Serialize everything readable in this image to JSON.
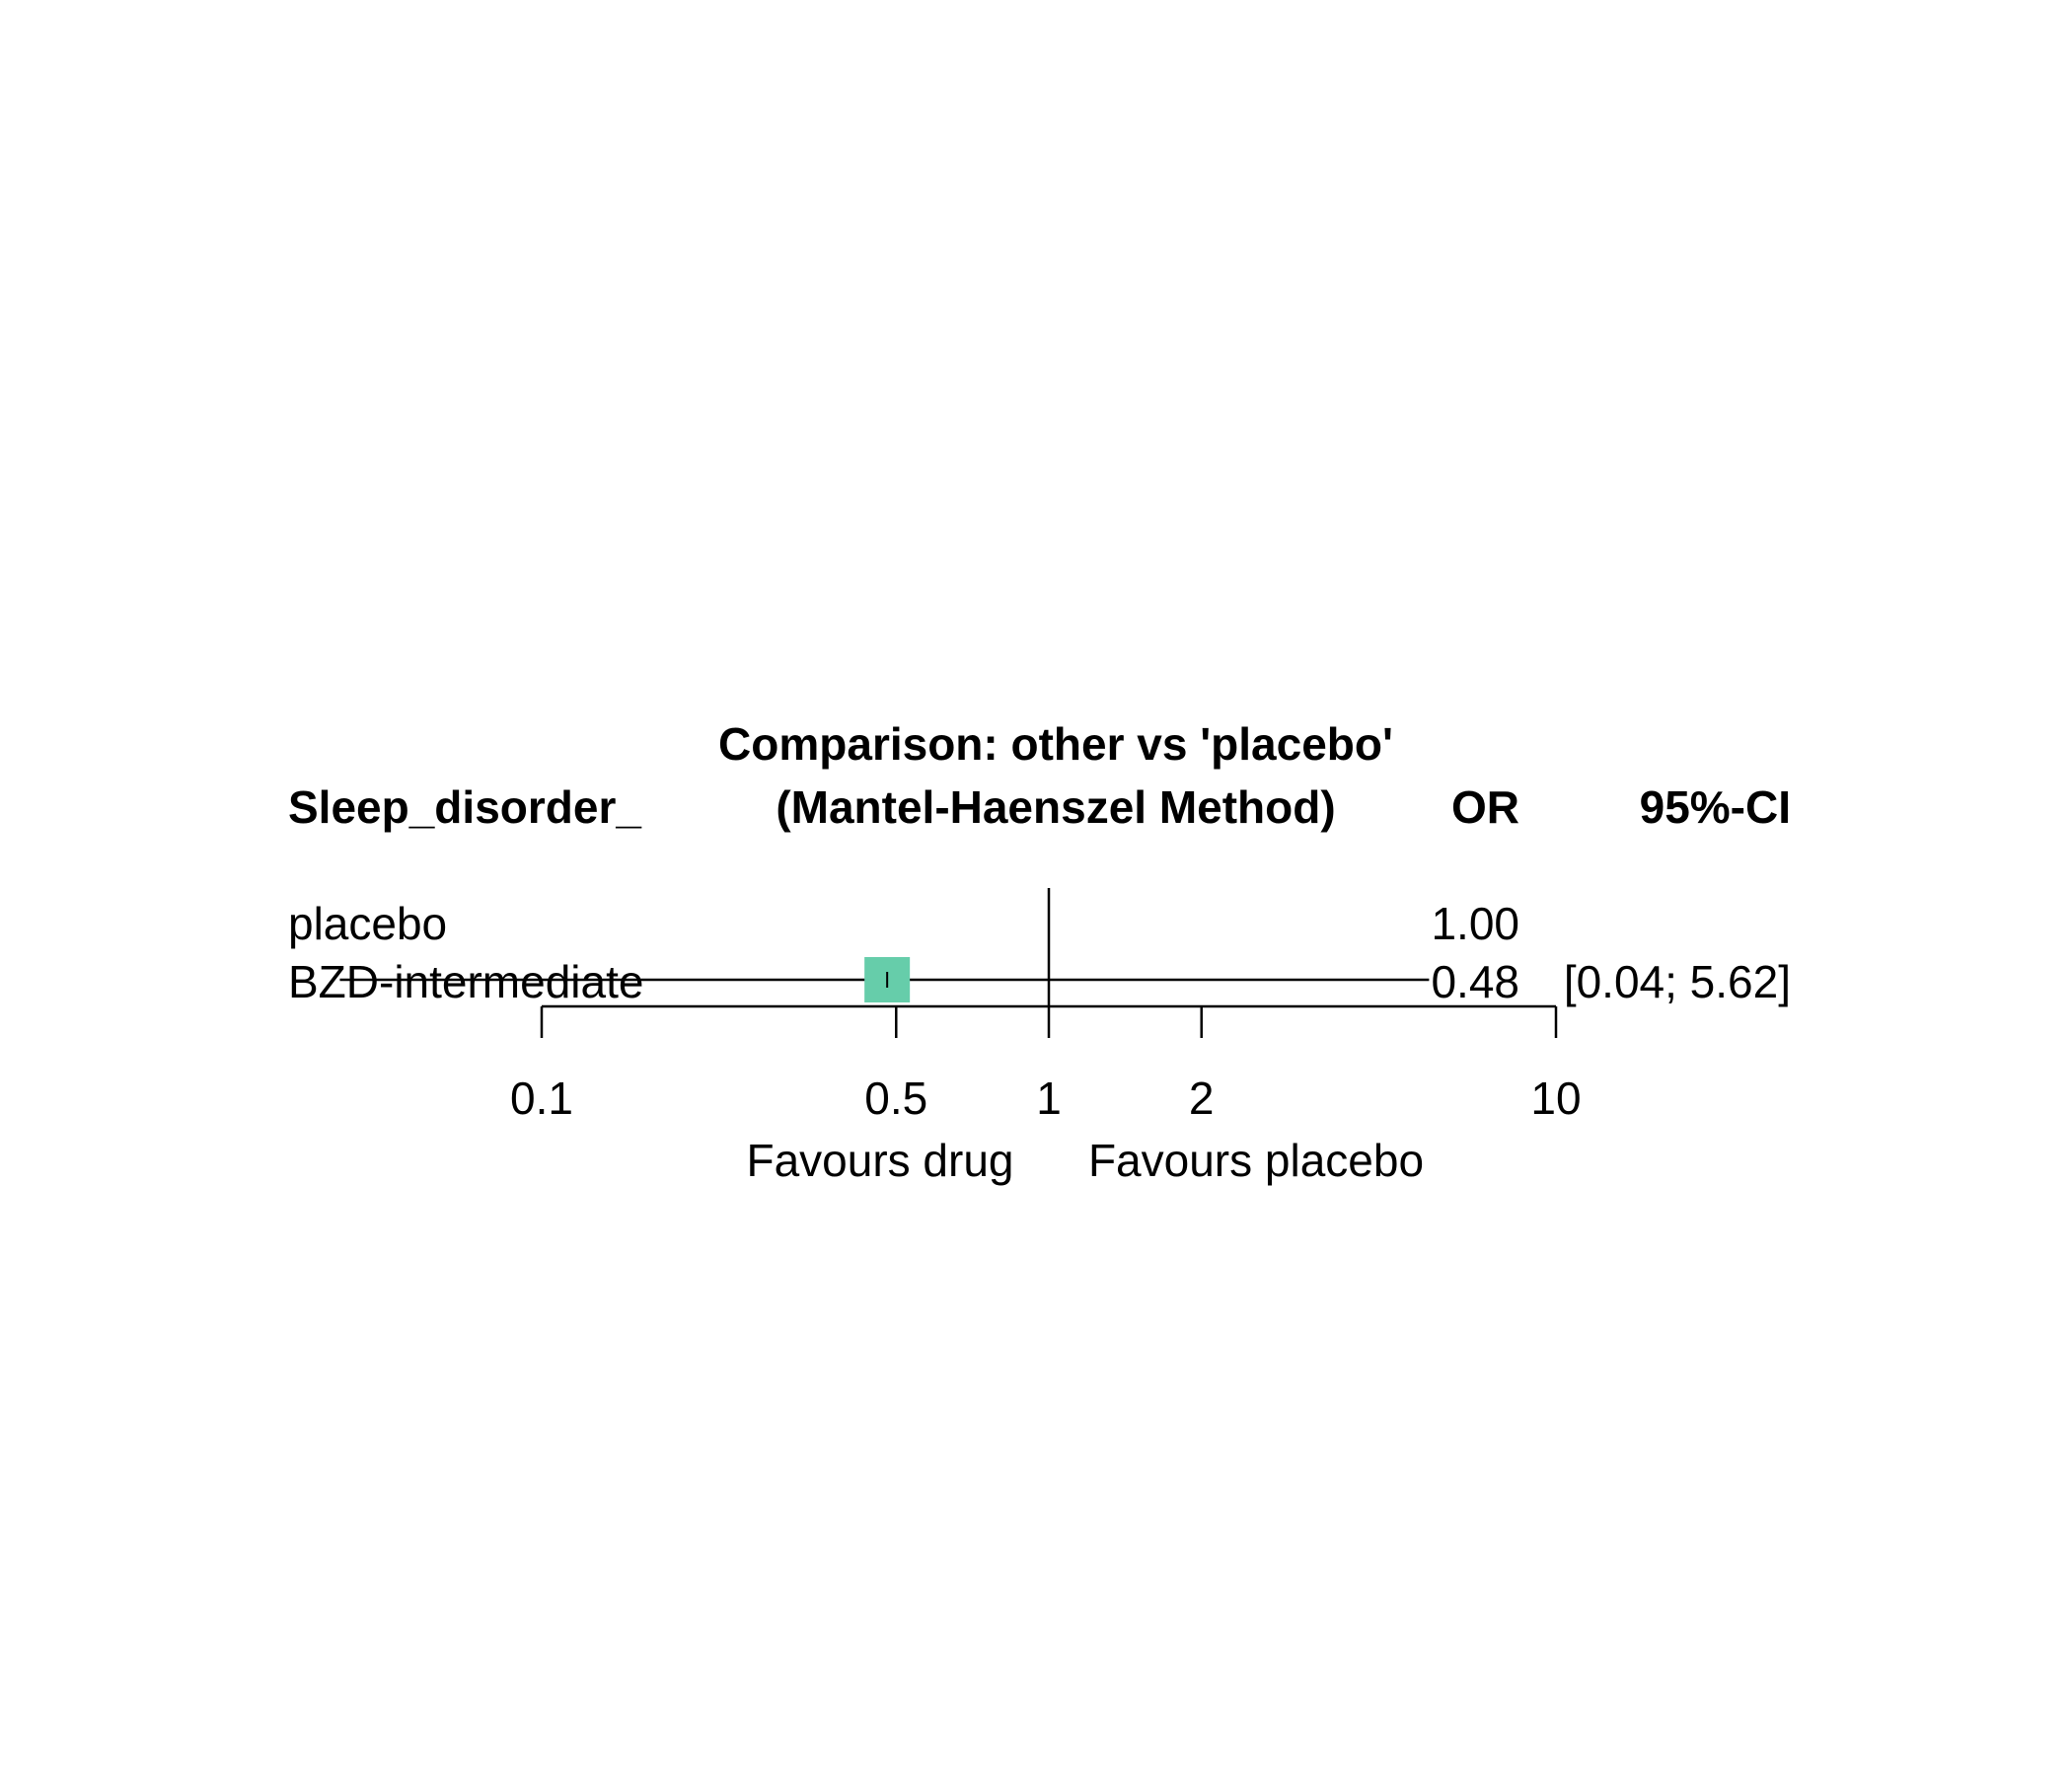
{
  "chart_data": {
    "type": "forest",
    "title": "Comparison: other vs 'placebo'",
    "subtitle": "(Mantel-Haenszel Method)",
    "columns": {
      "study": "Sleep_disorder_",
      "estimate": "OR",
      "ci": "95%-CI"
    },
    "rows": [
      {
        "label": "placebo",
        "or": 1.0,
        "or_text": "1.00",
        "ci_low": null,
        "ci_high": null,
        "ci_text": ""
      },
      {
        "label": "BZD-intermediate",
        "or": 0.48,
        "or_text": "0.48",
        "ci_low": 0.04,
        "ci_high": 5.62,
        "ci_text": "[0.04; 5.62]"
      }
    ],
    "x_scale": "log",
    "reference_line": 1,
    "x_ticks": [
      0.1,
      0.5,
      1,
      2,
      10
    ],
    "x_tick_labels": [
      "0.1",
      "0.5",
      "1",
      "2",
      "10"
    ],
    "favours_left": "Favours drug",
    "favours_right": "Favours placebo",
    "marker_color": "#66CDAA"
  }
}
